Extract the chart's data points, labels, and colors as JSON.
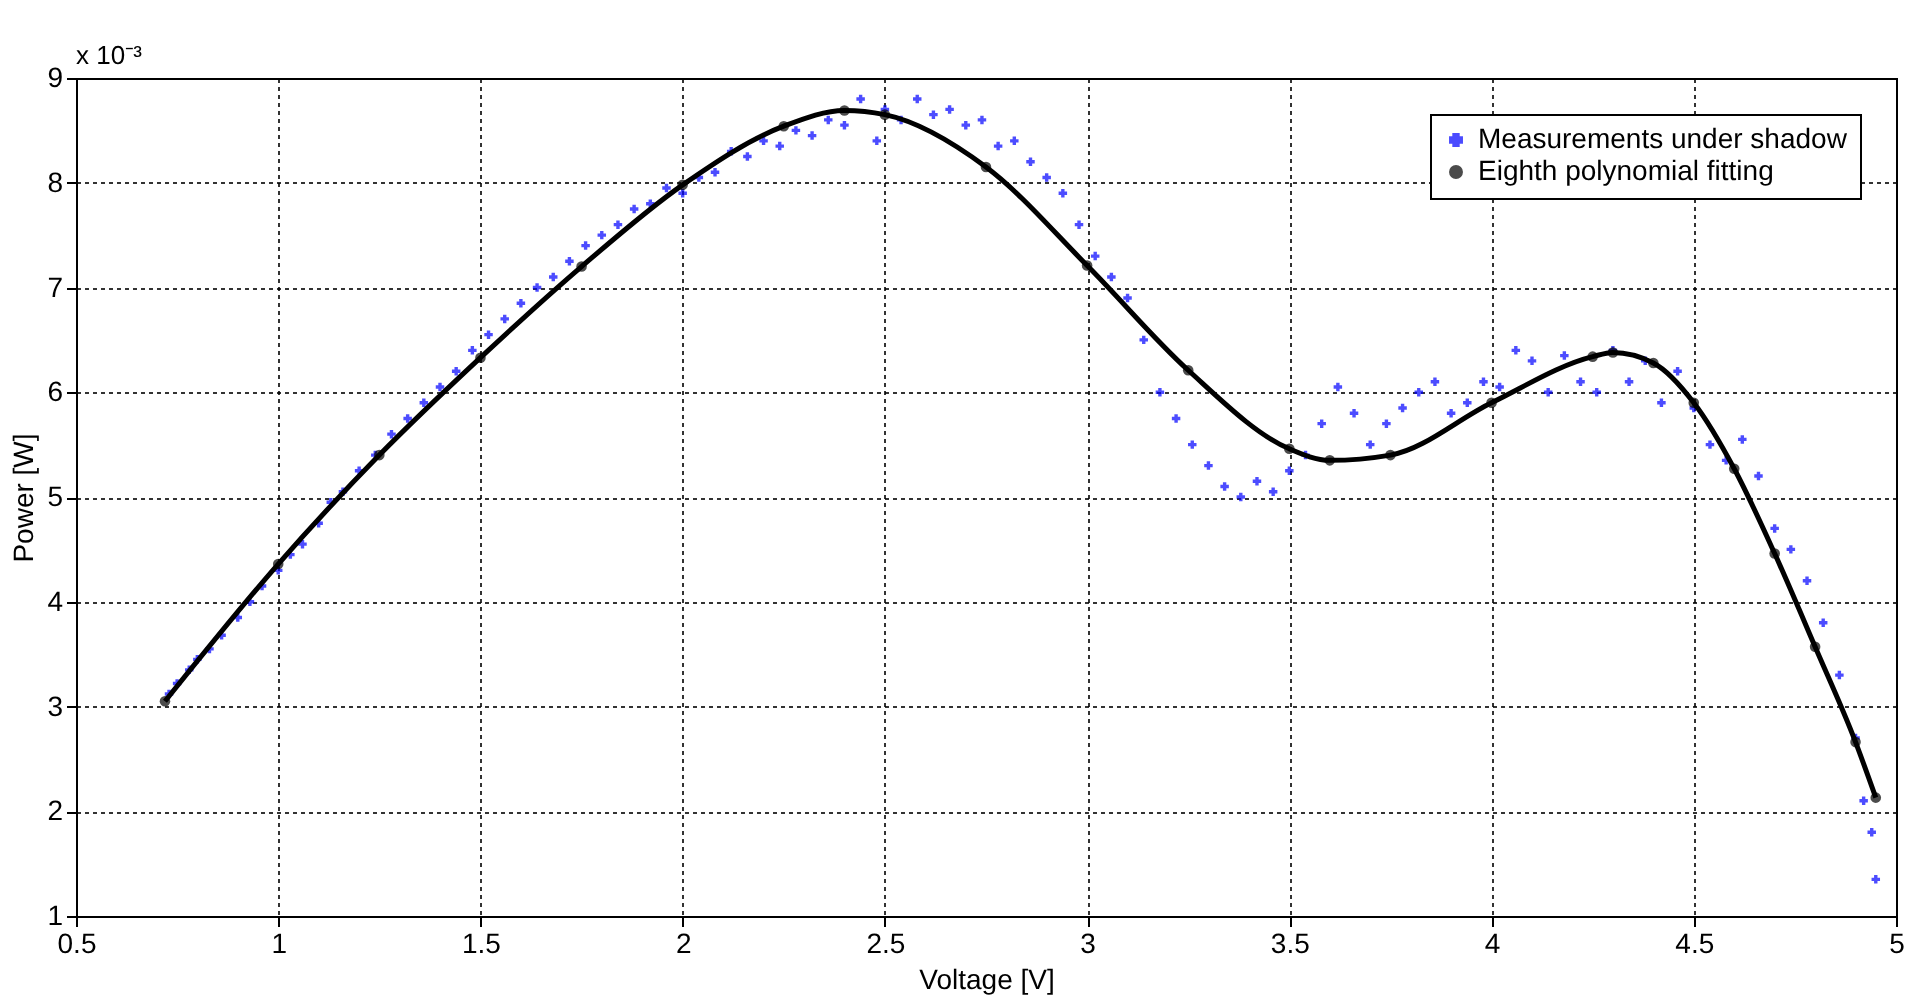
{
  "chart_data": {
    "type": "scatter",
    "xlabel": "Voltage [V]",
    "ylabel": "Power [W]",
    "annotations": [
      "x 10⁻³"
    ],
    "xlim": [
      0.5,
      5
    ],
    "xticks": [
      0.5,
      1,
      1.5,
      2,
      2.5,
      3,
      3.5,
      4,
      4.5,
      5
    ],
    "ylim": [
      1,
      9
    ],
    "yticks": [
      1,
      2,
      3,
      4,
      5,
      6,
      7,
      8,
      9
    ],
    "grid": true,
    "legend": "top right",
    "series": [
      {
        "name": "Measurements under shadow",
        "type": "scatter",
        "marker": "cross",
        "color": "#0000ff",
        "x": [
          0.73,
          0.75,
          0.78,
          0.8,
          0.83,
          0.86,
          0.9,
          0.93,
          0.96,
          1.0,
          1.03,
          1.06,
          1.1,
          1.13,
          1.16,
          1.2,
          1.24,
          1.28,
          1.32,
          1.36,
          1.4,
          1.44,
          1.48,
          1.52,
          1.56,
          1.6,
          1.64,
          1.68,
          1.72,
          1.76,
          1.8,
          1.84,
          1.88,
          1.92,
          1.96,
          2.0,
          2.04,
          2.08,
          2.12,
          2.16,
          2.2,
          2.24,
          2.28,
          2.32,
          2.36,
          2.4,
          2.44,
          2.48,
          2.5,
          2.54,
          2.58,
          2.62,
          2.66,
          2.7,
          2.74,
          2.78,
          2.82,
          2.86,
          2.9,
          2.94,
          2.98,
          3.02,
          3.06,
          3.1,
          3.14,
          3.18,
          3.22,
          3.26,
          3.3,
          3.34,
          3.38,
          3.42,
          3.46,
          3.5,
          3.54,
          3.58,
          3.62,
          3.66,
          3.7,
          3.74,
          3.78,
          3.82,
          3.86,
          3.9,
          3.94,
          3.98,
          4.02,
          4.06,
          4.1,
          4.14,
          4.18,
          4.22,
          4.26,
          4.3,
          4.34,
          4.38,
          4.42,
          4.46,
          4.5,
          4.54,
          4.58,
          4.62,
          4.66,
          4.7,
          4.74,
          4.78,
          4.82,
          4.86,
          4.9,
          4.92,
          4.94,
          4.95
        ],
        "values": [
          3.12,
          3.22,
          3.35,
          3.45,
          3.55,
          3.68,
          3.85,
          4.0,
          4.15,
          4.3,
          4.45,
          4.55,
          4.75,
          4.95,
          5.05,
          5.25,
          5.4,
          5.6,
          5.75,
          5.9,
          6.05,
          6.2,
          6.4,
          6.55,
          6.7,
          6.85,
          7.0,
          7.1,
          7.25,
          7.4,
          7.5,
          7.6,
          7.75,
          7.8,
          7.95,
          7.9,
          8.05,
          8.1,
          8.3,
          8.25,
          8.4,
          8.35,
          8.5,
          8.45,
          8.6,
          8.55,
          8.8,
          8.4,
          8.7,
          8.6,
          8.8,
          8.65,
          8.7,
          8.55,
          8.6,
          8.35,
          8.4,
          8.2,
          8.05,
          7.9,
          7.6,
          7.3,
          7.1,
          6.9,
          6.5,
          6.0,
          5.75,
          5.5,
          5.3,
          5.1,
          5.0,
          5.15,
          5.05,
          5.25,
          5.4,
          5.7,
          6.05,
          5.8,
          5.5,
          5.7,
          5.85,
          6.0,
          6.1,
          5.8,
          5.9,
          6.1,
          6.05,
          6.4,
          6.3,
          6.0,
          6.35,
          6.1,
          6.0,
          6.4,
          6.1,
          6.3,
          5.9,
          6.2,
          5.85,
          5.5,
          5.35,
          5.55,
          5.2,
          4.7,
          4.5,
          4.2,
          3.8,
          3.3,
          2.7,
          2.1,
          1.8,
          1.35
        ]
      },
      {
        "name": "Eighth polynomial fitting",
        "type": "line",
        "marker": "circle",
        "color": "#000000",
        "x": [
          0.72,
          1.0,
          1.25,
          1.5,
          1.75,
          2.0,
          2.25,
          2.4,
          2.5,
          2.75,
          3.0,
          3.25,
          3.5,
          3.6,
          3.75,
          4.0,
          4.25,
          4.3,
          4.4,
          4.5,
          4.6,
          4.7,
          4.8,
          4.9,
          4.95
        ],
        "values": [
          3.05,
          4.36,
          5.4,
          6.33,
          7.2,
          7.98,
          8.54,
          8.69,
          8.65,
          8.15,
          7.21,
          6.21,
          5.46,
          5.35,
          5.4,
          5.9,
          6.34,
          6.38,
          6.28,
          5.9,
          5.27,
          4.46,
          3.57,
          2.66,
          2.13
        ]
      }
    ]
  }
}
